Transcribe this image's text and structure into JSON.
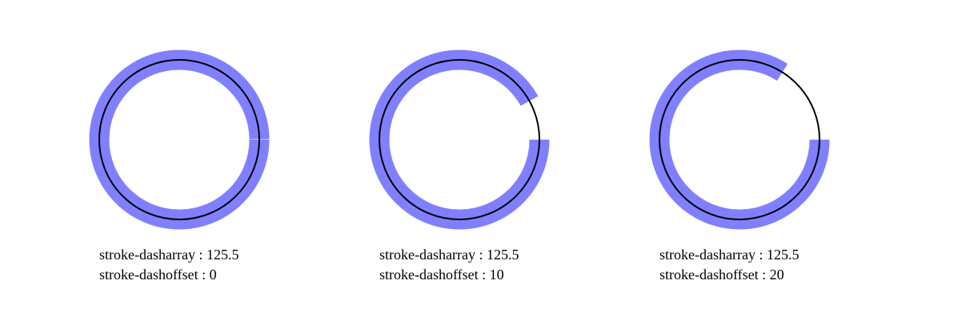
{
  "colors": {
    "dashed_stroke": "#8080ff",
    "reference_stroke": "#000000",
    "background": "#ffffff"
  },
  "panels": [
    {
      "dasharray_text": "stroke-dasharray : 125.5",
      "dashoffset_text": "stroke-dashoffset : 0",
      "dasharray": 125.5,
      "dashoffset": 0
    },
    {
      "dasharray_text": "stroke-dasharray : 125.5",
      "dashoffset_text": "stroke-dashoffset : 10",
      "dasharray": 125.5,
      "dashoffset": 10
    },
    {
      "dasharray_text": "stroke-dasharray : 125.5",
      "dashoffset_text": "stroke-dashoffset : 20",
      "dasharray": 125.5,
      "dashoffset": 20
    }
  ]
}
